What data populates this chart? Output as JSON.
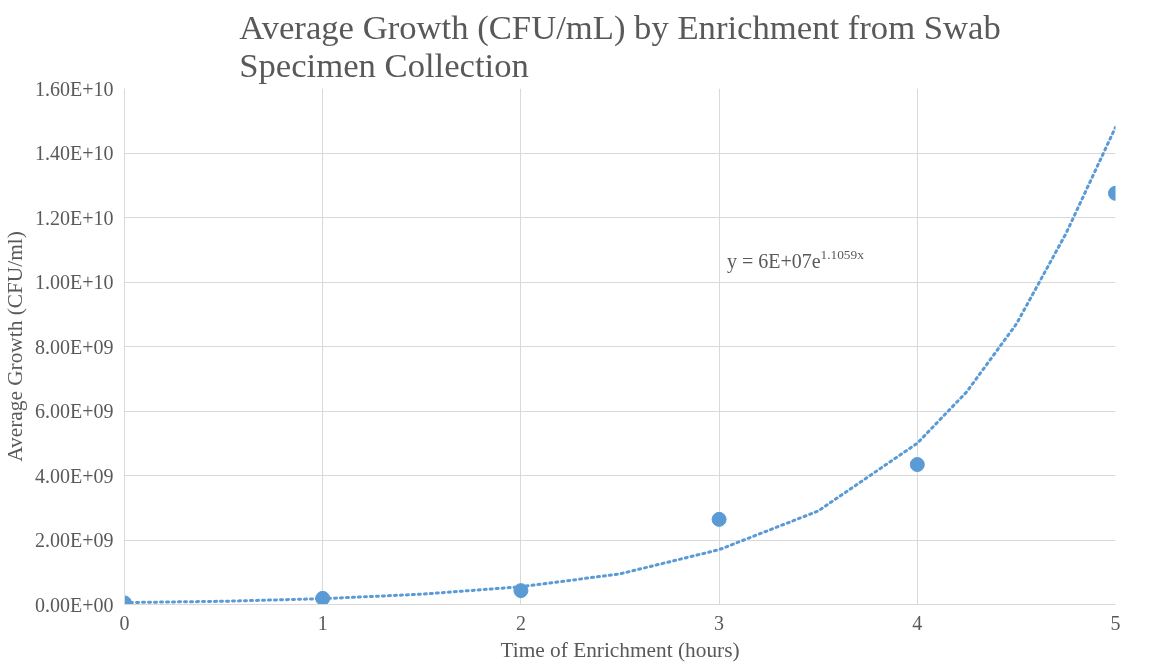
{
  "chart_data": {
    "type": "scatter",
    "title": "Average Growth (CFU/mL) by Enrichment from Swab Specimen Collection",
    "xlabel": "Time of Enrichment (hours)",
    "ylabel": "Average Growth (CFU/ml)",
    "xlim": [
      0,
      5
    ],
    "xticks": [
      0,
      1,
      2,
      3,
      4,
      5
    ],
    "ylim": [
      0,
      16000000000
    ],
    "yticks": [
      {
        "value": 0,
        "label": "0.00E+00"
      },
      {
        "value": 2000000000,
        "label": "2.00E+09"
      },
      {
        "value": 4000000000,
        "label": "4.00E+09"
      },
      {
        "value": 6000000000,
        "label": "6.00E+09"
      },
      {
        "value": 8000000000,
        "label": "8.00E+09"
      },
      {
        "value": 10000000000,
        "label": "1.00E+10"
      },
      {
        "value": 12000000000,
        "label": "1.20E+10"
      },
      {
        "value": 14000000000,
        "label": "1.40E+10"
      },
      {
        "value": 16000000000,
        "label": "1.60E+10"
      }
    ],
    "grid": true,
    "marker": "circle",
    "series": [
      {
        "color": "#5b9bd5",
        "x": [
          0,
          1,
          2,
          3,
          4,
          5
        ],
        "values": [
          50000000,
          190000000,
          430000000,
          2640000000,
          4340000000,
          12750000000
        ]
      },
      {
        "type": "line",
        "color": "#5b9bd5",
        "marker": "none",
        "line_style": "dotted",
        "x": [
          0,
          0.5,
          1,
          1.5,
          2,
          2.5,
          3,
          3.5,
          4,
          4.25,
          4.5,
          4.75,
          5
        ],
        "values": [
          60000000,
          100000000,
          180000000,
          320000000,
          550000000,
          950000000,
          1700000000,
          2900000000,
          5000000000,
          6600000000,
          8700000000,
          11500000000,
          14800000000
        ]
      }
    ],
    "annotations": [
      "y = 6E+07e$^{1.1059x}$"
    ]
  }
}
